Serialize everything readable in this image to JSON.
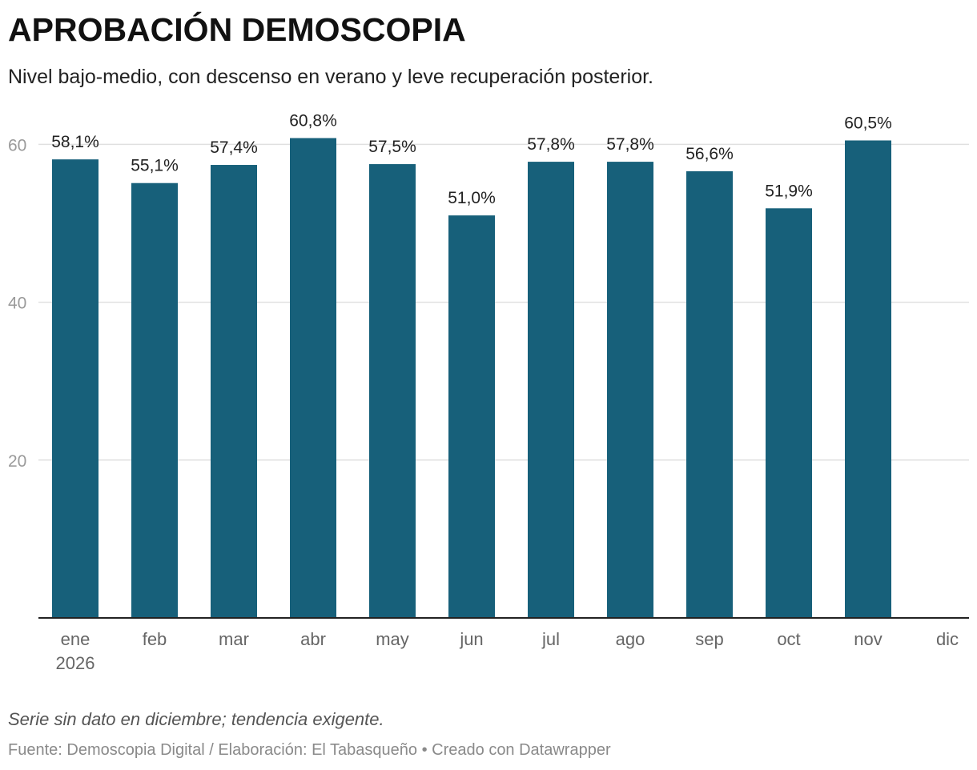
{
  "header": {
    "title": "APROBACIÓN DEMOSCOPIA",
    "subtitle": "Nivel bajo-medio, con descenso en verano y leve recuperación posterior."
  },
  "footer": {
    "note": "Serie sin dato en diciembre; tendencia exigente.",
    "source": "Fuente: Demoscopia Digital / Elaboración: El Tabasqueño • Creado con Datawrapper"
  },
  "colors": {
    "bar": "#17607a",
    "grid": "#e0e0e0",
    "baseline": "#222222"
  },
  "chart_data": {
    "type": "bar",
    "categories": [
      "ene\n2026",
      "feb",
      "mar",
      "abr",
      "may",
      "jun",
      "jul",
      "ago",
      "sep",
      "oct",
      "nov",
      "dic"
    ],
    "values": [
      58.1,
      55.1,
      57.4,
      60.8,
      57.5,
      51.0,
      57.8,
      57.8,
      56.6,
      51.9,
      60.5,
      null
    ],
    "data_labels": [
      "58,1%",
      "55,1%",
      "57,4%",
      "60,8%",
      "57,5%",
      "51,0%",
      "57,8%",
      "57,8%",
      "56,6%",
      "51,9%",
      "60,5%",
      ""
    ],
    "title": "APROBACIÓN DEMOSCOPIA",
    "subtitle": "Nivel bajo-medio, con descenso en verano y leve recuperación posterior.",
    "xlabel": "",
    "ylabel": "",
    "ylim": [
      0,
      60
    ],
    "yticks": [
      20,
      40,
      60
    ],
    "grid": true,
    "legend": "none"
  }
}
